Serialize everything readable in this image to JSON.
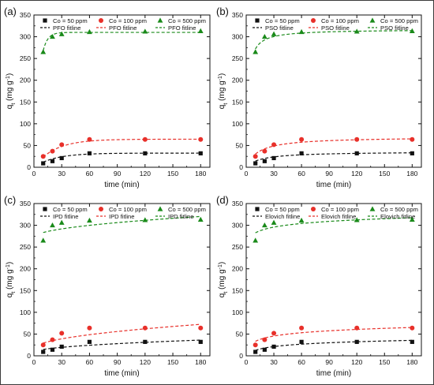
{
  "colors": {
    "black": "#111111",
    "red": "#e8302a",
    "green": "#1a8a1a"
  },
  "chart_data": [
    {
      "type": "scatter",
      "panel": "(a)",
      "xlabel": "time (min)",
      "ylabel": "q",
      "ylabel_sub": "t",
      "ylabel_unit": " (mg g",
      "ylabel_sup": "-1",
      "ylabel_end": ")",
      "xlim": [
        0,
        190
      ],
      "ylim": [
        0,
        350
      ],
      "xticks": [
        0,
        30,
        60,
        90,
        120,
        150,
        180
      ],
      "yticks": [
        0,
        50,
        100,
        150,
        200,
        250,
        300,
        350
      ],
      "legend_position": "top",
      "x": [
        10,
        20,
        30,
        60,
        120,
        180
      ],
      "series": [
        {
          "name": "Co = 50 ppm",
          "marker": "square",
          "color": "#111111",
          "values": [
            9,
            14,
            21,
            32,
            32,
            32
          ]
        },
        {
          "name": "Co = 100 ppm",
          "marker": "circle",
          "color": "#e8302a",
          "values": [
            25,
            37,
            52,
            64,
            64,
            64
          ]
        },
        {
          "name": "Co = 500 ppm",
          "marker": "triangle",
          "color": "#1a8a1a",
          "values": [
            265,
            300,
            306,
            311,
            312,
            313
          ]
        }
      ],
      "fits": [
        {
          "name": "PFO fitline",
          "color": "#111111",
          "model": "pfo",
          "params": {
            "qe": 32.5,
            "k": 0.045
          }
        },
        {
          "name": "PFO fitline",
          "color": "#e8302a",
          "model": "pfo",
          "params": {
            "qe": 64.5,
            "k": 0.045
          }
        },
        {
          "name": "PFO fitline",
          "color": "#1a8a1a",
          "model": "pfo",
          "params": {
            "qe": 310,
            "k": 0.2
          }
        }
      ]
    },
    {
      "type": "scatter",
      "panel": "(b)",
      "xlabel": "time (min)",
      "ylabel": "q",
      "ylabel_sub": "t",
      "ylabel_unit": " (mg g",
      "ylabel_sup": "-1",
      "ylabel_end": ")",
      "xlim": [
        0,
        190
      ],
      "ylim": [
        0,
        350
      ],
      "xticks": [
        0,
        30,
        60,
        90,
        120,
        150,
        180
      ],
      "yticks": [
        0,
        50,
        100,
        150,
        200,
        250,
        300,
        350
      ],
      "legend_position": "top",
      "x": [
        10,
        20,
        30,
        60,
        120,
        180
      ],
      "series": [
        {
          "name": "Co = 50 ppm",
          "marker": "square",
          "color": "#111111",
          "values": [
            9,
            14,
            21,
            32,
            32,
            32
          ]
        },
        {
          "name": "Co = 100 ppm",
          "marker": "circle",
          "color": "#e8302a",
          "values": [
            25,
            37,
            52,
            64,
            64,
            64
          ]
        },
        {
          "name": "Co = 500 ppm",
          "marker": "triangle",
          "color": "#1a8a1a",
          "values": [
            265,
            300,
            306,
            311,
            312,
            313
          ]
        }
      ],
      "fits": [
        {
          "name": "PSO fitline",
          "color": "#111111",
          "model": "pso",
          "params": {
            "qe": 36,
            "k": 0.0018
          }
        },
        {
          "name": "PSO fitline",
          "color": "#e8302a",
          "model": "pso",
          "params": {
            "qe": 70,
            "k": 0.0011
          }
        },
        {
          "name": "PSO fitline",
          "color": "#1a8a1a",
          "model": "pso",
          "params": {
            "qe": 317,
            "k": 0.0019
          }
        }
      ]
    },
    {
      "type": "scatter",
      "panel": "(c)",
      "xlabel": "time (min)",
      "ylabel": "q",
      "ylabel_sub": "t",
      "ylabel_unit": " (mg g",
      "ylabel_sup": "-1",
      "ylabel_end": ")",
      "xlim": [
        0,
        190
      ],
      "ylim": [
        0,
        350
      ],
      "xticks": [
        0,
        30,
        60,
        90,
        120,
        150,
        180
      ],
      "yticks": [
        0,
        50,
        100,
        150,
        200,
        250,
        300,
        350
      ],
      "legend_position": "top",
      "x": [
        10,
        20,
        30,
        60,
        120,
        180
      ],
      "series": [
        {
          "name": "Co = 50 ppm",
          "marker": "square",
          "color": "#111111",
          "values": [
            9,
            14,
            21,
            32,
            32,
            32
          ]
        },
        {
          "name": "Co = 100 ppm",
          "marker": "circle",
          "color": "#e8302a",
          "values": [
            25,
            37,
            52,
            64,
            64,
            64
          ]
        },
        {
          "name": "Co = 500 ppm",
          "marker": "triangle",
          "color": "#1a8a1a",
          "values": [
            265,
            300,
            306,
            311,
            312,
            313
          ]
        }
      ],
      "fits": [
        {
          "name": "IPD fitline",
          "color": "#111111",
          "model": "ipd",
          "params": {
            "kid": 2.1,
            "c": 8
          }
        },
        {
          "name": "IPD fitline",
          "color": "#e8302a",
          "model": "ipd",
          "params": {
            "kid": 4.2,
            "c": 16
          }
        },
        {
          "name": "IPD fitline",
          "color": "#1a8a1a",
          "model": "ipd",
          "params": {
            "kid": 3.6,
            "c": 272
          }
        }
      ]
    },
    {
      "type": "scatter",
      "panel": "(d)",
      "xlabel": "time (min)",
      "ylabel": "q",
      "ylabel_sub": "t",
      "ylabel_unit": " (mg g",
      "ylabel_sup": "-1",
      "ylabel_end": ")",
      "xlim": [
        0,
        190
      ],
      "ylim": [
        0,
        350
      ],
      "xticks": [
        0,
        30,
        60,
        90,
        120,
        150,
        180
      ],
      "yticks": [
        0,
        50,
        100,
        150,
        200,
        250,
        300,
        350
      ],
      "legend_position": "top",
      "x": [
        10,
        20,
        30,
        60,
        120,
        180
      ],
      "series": [
        {
          "name": "Co = 50 ppm",
          "marker": "square",
          "color": "#111111",
          "values": [
            9,
            14,
            21,
            32,
            32,
            32
          ]
        },
        {
          "name": "Co = 100 ppm",
          "marker": "circle",
          "color": "#e8302a",
          "values": [
            25,
            37,
            52,
            64,
            64,
            64
          ]
        },
        {
          "name": "Co = 500 ppm",
          "marker": "triangle",
          "color": "#1a8a1a",
          "values": [
            265,
            300,
            306,
            311,
            312,
            313
          ]
        }
      ],
      "fits": [
        {
          "name": "Elovich fitline",
          "color": "#111111",
          "model": "elovich",
          "params": {
            "a": -6,
            "b": 8
          }
        },
        {
          "name": "Elovich fitline",
          "color": "#e8302a",
          "model": "elovich",
          "params": {
            "a": 8,
            "b": 11
          }
        },
        {
          "name": "Elovich fitline",
          "color": "#1a8a1a",
          "model": "elovich",
          "params": {
            "a": 255,
            "b": 12
          }
        }
      ]
    }
  ]
}
